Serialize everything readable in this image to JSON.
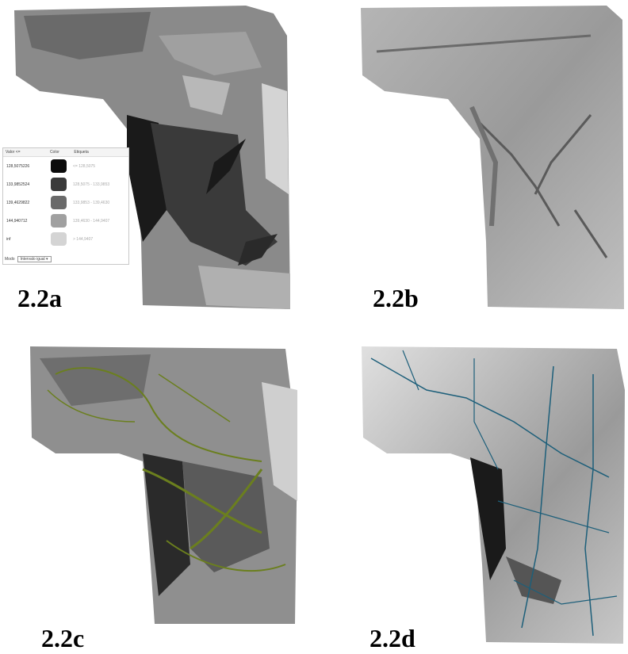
{
  "panels": [
    {
      "id": "2.2a",
      "label": "2.2a"
    },
    {
      "id": "2.2b",
      "label": "2.2b"
    },
    {
      "id": "2.2c",
      "label": "2.2c"
    },
    {
      "id": "2.2d",
      "label": "2.2d"
    }
  ],
  "legend": {
    "headers": {
      "value": "Valor <=",
      "color": "Color",
      "label": "Etiqueta"
    },
    "rows": [
      {
        "value": "128,5075226",
        "color": "#0b0b0b",
        "label": "<= 128,5075"
      },
      {
        "value": "133,9852524",
        "color": "#3a3a3a",
        "label": "128,5075 - 133,9853"
      },
      {
        "value": "139,4629822",
        "color": "#6a6a6a",
        "label": "133,9853 - 139,4630"
      },
      {
        "value": "144,940712",
        "color": "#a0a0a0",
        "label": "139,4630 - 144,9407"
      },
      {
        "value": "inf",
        "color": "#d4d4d4",
        "label": "> 144,9407"
      }
    ],
    "mode_label": "Modo",
    "mode_value": "Intervalo igual"
  },
  "colors": {
    "contour": "#6b7f1e",
    "streams": "#1d5f7a"
  }
}
